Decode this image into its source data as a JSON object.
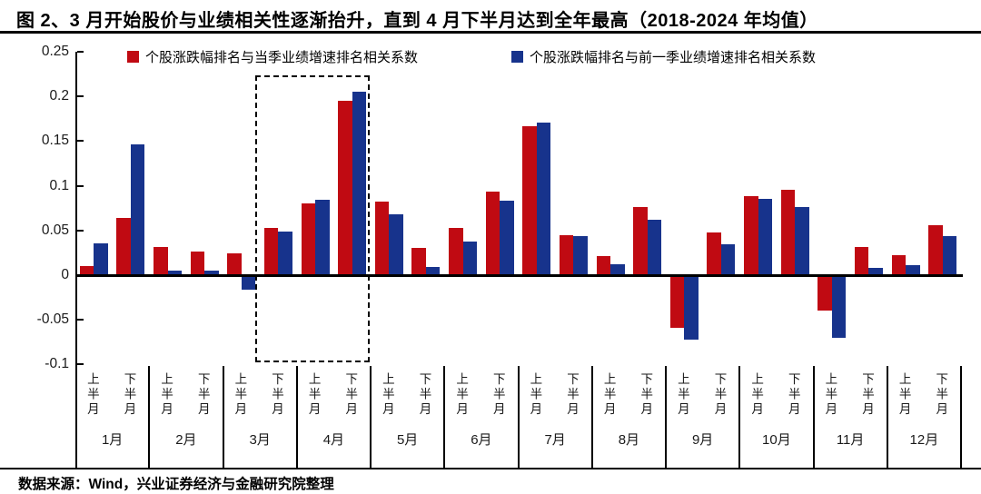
{
  "title": "图 2、3 月开始股价与业绩相关性逐渐抬升，直到 4 月下半月达到全年最高（2018-2024 年均值）",
  "source": "数据来源：Wind，兴业证券经济与金融研究院整理",
  "colors": {
    "series_current_quarter": "#C00A12",
    "series_prev_quarter": "#17338C",
    "axis": "#000000"
  },
  "chart_data": {
    "type": "bar",
    "title": "图 2、3 月开始股价与业绩相关性逐渐抬升，直到 4 月下半月达到全年最高（2018-2024 年均值）",
    "xlabel": "",
    "ylabel": "",
    "ylim": [
      -0.1,
      0.25
    ],
    "grid": false,
    "legend_position": "top",
    "y_tick_labels": [
      "0.25",
      "0.2",
      "0.15",
      "0.1",
      "0.05",
      "0",
      "-0.05",
      "-0.1"
    ],
    "y_ticks": [
      0.25,
      0.2,
      0.15,
      0.1,
      0.05,
      0,
      -0.05,
      -0.1
    ],
    "categories_months": [
      "1月",
      "2月",
      "3月",
      "4月",
      "5月",
      "6月",
      "7月",
      "8月",
      "9月",
      "10月",
      "11月",
      "12月"
    ],
    "half_labels": [
      "上半月",
      "下半月"
    ],
    "series": [
      {
        "name": "个股涨跌幅排名与当季业绩增速排名相关系数",
        "color": "#C00A12",
        "values": [
          0.01,
          0.064,
          0.032,
          0.026,
          0.024,
          0.053,
          0.08,
          0.195,
          0.082,
          0.03,
          0.053,
          0.094,
          0.167,
          0.045,
          0.021,
          0.076,
          -0.057,
          0.048,
          0.088,
          0.096,
          -0.038,
          0.031,
          0.022,
          0.056
        ]
      },
      {
        "name": "个股涨跌幅排名与前一季业绩增速排名相关系数",
        "color": "#17338C",
        "values": [
          0.036,
          0.146,
          0.005,
          0.005,
          -0.014,
          0.049,
          0.084,
          0.205,
          0.068,
          0.009,
          0.038,
          0.083,
          0.171,
          0.044,
          0.012,
          0.062,
          -0.07,
          0.035,
          0.085,
          0.076,
          -0.068,
          0.008,
          0.011,
          0.044
        ]
      }
    ],
    "highlight_box": {
      "description": "3月下半月至4月下半月",
      "start_half_index": 5,
      "end_half_index": 8
    }
  }
}
